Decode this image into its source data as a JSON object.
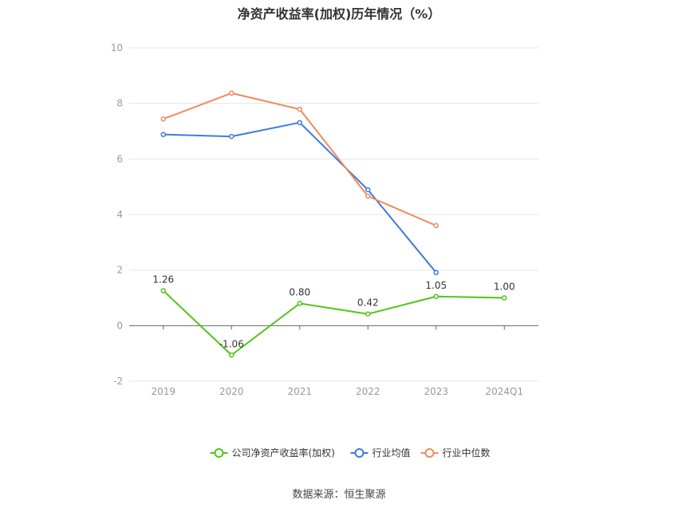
{
  "chart_data": {
    "type": "line",
    "title": "净资产收益率(加权)历年情况（%）",
    "categories": [
      "2019",
      "2020",
      "2021",
      "2022",
      "2023",
      "2024Q1"
    ],
    "ylim": [
      -2,
      10
    ],
    "yticks": [
      -2,
      0,
      2,
      4,
      6,
      8,
      10
    ],
    "grid": true,
    "legend_position": "bottom",
    "series": [
      {
        "name": "公司净资产收益率(加权)",
        "color": "#52c41a",
        "values": [
          1.26,
          -1.06,
          0.8,
          0.42,
          1.05,
          1.0
        ],
        "labels": [
          "1.26",
          "-1.06",
          "0.80",
          "0.42",
          "1.05",
          "1.00"
        ]
      },
      {
        "name": "行业均值",
        "color": "#3f7ae0",
        "values": [
          6.88,
          6.81,
          7.31,
          4.89,
          1.91,
          null
        ]
      },
      {
        "name": "行业中位数",
        "color": "#f08a5d",
        "values": [
          7.44,
          8.37,
          7.79,
          4.66,
          3.6,
          null
        ]
      }
    ]
  },
  "footer": {
    "source": "数据来源：恒生聚源"
  }
}
